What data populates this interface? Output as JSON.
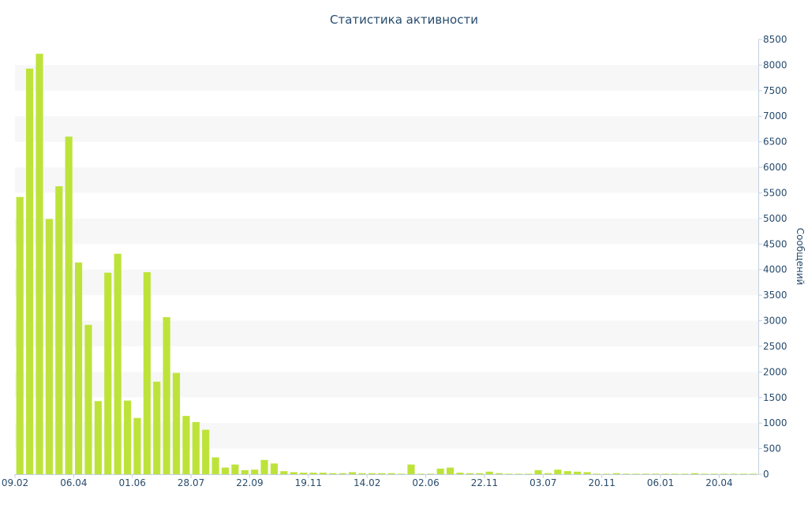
{
  "chart_data": {
    "type": "bar",
    "title": "Статистика активности",
    "ylabel": "Сообщений",
    "ylim": [
      0,
      8500
    ],
    "y_ticks": [
      0,
      500,
      1000,
      1500,
      2000,
      2500,
      3000,
      3500,
      4000,
      4500,
      5000,
      5500,
      6000,
      6500,
      7000,
      7500,
      8000,
      8500
    ],
    "y_axis_side": "right",
    "grid": "alternating horizontal bands",
    "x_tick_labels": [
      {
        "label": "09.02",
        "index": 0
      },
      {
        "label": "06.04",
        "index": 6
      },
      {
        "label": "01.06",
        "index": 12
      },
      {
        "label": "28.07",
        "index": 18
      },
      {
        "label": "22.09",
        "index": 24
      },
      {
        "label": "19.11",
        "index": 30
      },
      {
        "label": "14.02",
        "index": 36
      },
      {
        "label": "02.06",
        "index": 42
      },
      {
        "label": "22.11",
        "index": 48
      },
      {
        "label": "03.07",
        "index": 54
      },
      {
        "label": "20.11",
        "index": 60
      },
      {
        "label": "06.01",
        "index": 66
      },
      {
        "label": "20.04",
        "index": 72
      }
    ],
    "bar_color": "#bde33a",
    "values": [
      5420,
      7930,
      8220,
      4990,
      5630,
      6600,
      4140,
      2920,
      1430,
      3940,
      4310,
      1440,
      1100,
      3950,
      1810,
      3070,
      1980,
      1140,
      1020,
      870,
      330,
      130,
      190,
      80,
      90,
      280,
      210,
      60,
      40,
      30,
      30,
      30,
      20,
      20,
      40,
      20,
      20,
      20,
      20,
      10,
      190,
      10,
      10,
      110,
      130,
      30,
      20,
      20,
      50,
      20,
      10,
      10,
      10,
      80,
      20,
      90,
      60,
      50,
      40,
      10,
      10,
      20,
      10,
      10,
      10,
      10,
      10,
      10,
      10,
      20,
      10,
      10,
      10,
      10,
      10,
      10
    ]
  }
}
